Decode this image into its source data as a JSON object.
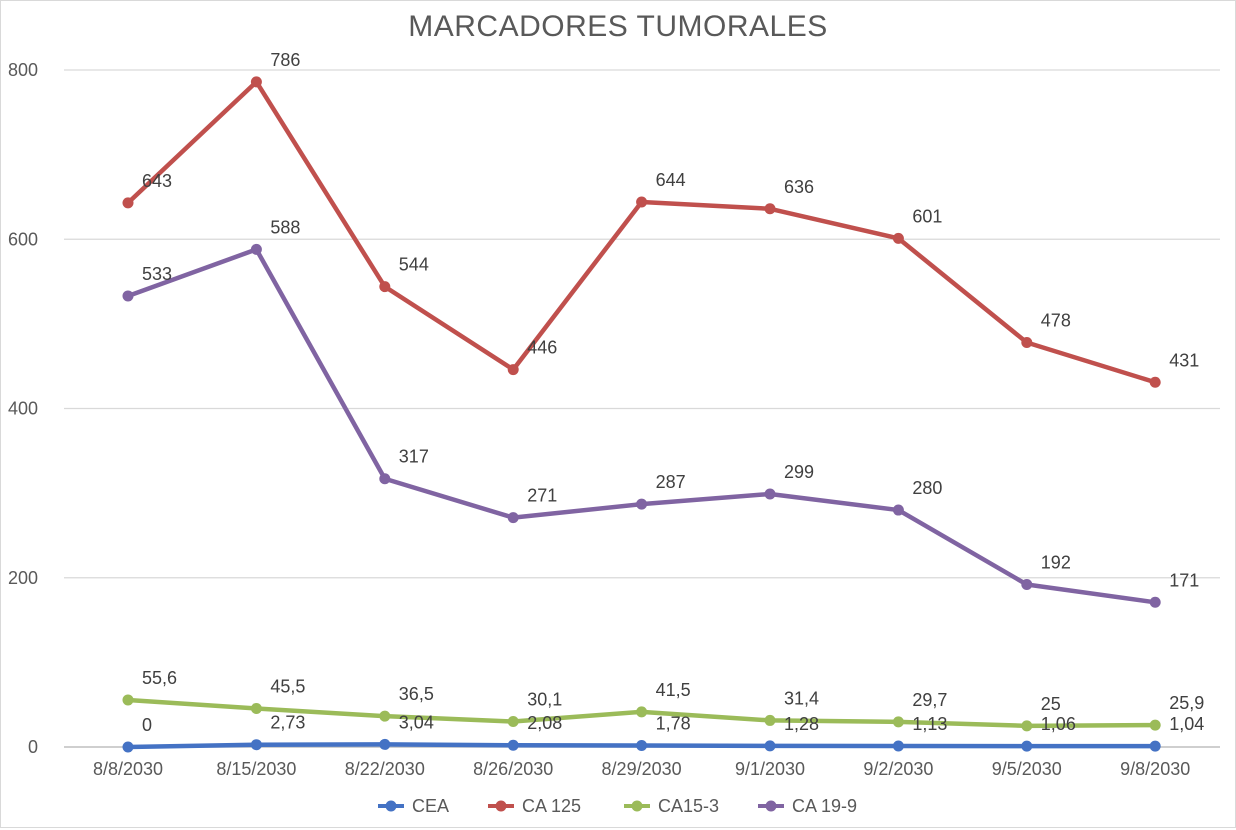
{
  "chart_data": {
    "type": "line",
    "title": "MARCADORES TUMORALES",
    "categories": [
      "8/8/2030",
      "8/15/2030",
      "8/22/2030",
      "8/26/2030",
      "8/29/2030",
      "9/1/2030",
      "9/2/2030",
      "9/5/2030",
      "9/8/2030"
    ],
    "ylim": [
      0,
      800
    ],
    "yticks": [
      "0",
      "200",
      "400",
      "600",
      "800"
    ],
    "grid": true,
    "legend_position": "bottom",
    "series": [
      {
        "name": "CEA",
        "color": "#4472c4",
        "values": [
          0,
          2.73,
          3.04,
          2.08,
          1.78,
          1.28,
          1.13,
          1.06,
          1.04
        ],
        "labels": [
          "0",
          "2,73",
          "3,04",
          "2,08",
          "1,78",
          "1,28",
          "1,13",
          "1,06",
          "1,04"
        ]
      },
      {
        "name": "CA 125",
        "color": "#c0504d",
        "values": [
          643,
          786,
          544,
          446,
          644,
          636,
          601,
          478,
          431
        ],
        "labels": [
          "643",
          "786",
          "544",
          "446",
          "644",
          "636",
          "601",
          "478",
          "431"
        ]
      },
      {
        "name": "CA15-3",
        "color": "#9bbb59",
        "values": [
          55.6,
          45.5,
          36.5,
          30.1,
          41.5,
          31.4,
          29.7,
          25,
          25.9
        ],
        "labels": [
          "55,6",
          "45,5",
          "36,5",
          "30,1",
          "41,5",
          "31,4",
          "29,7",
          "25",
          "25,9"
        ]
      },
      {
        "name": "CA 19-9",
        "color": "#8064a2",
        "values": [
          533,
          588,
          317,
          271,
          287,
          299,
          280,
          192,
          171
        ],
        "labels": [
          "533",
          "588",
          "317",
          "271",
          "287",
          "299",
          "280",
          "192",
          "171"
        ]
      }
    ]
  }
}
